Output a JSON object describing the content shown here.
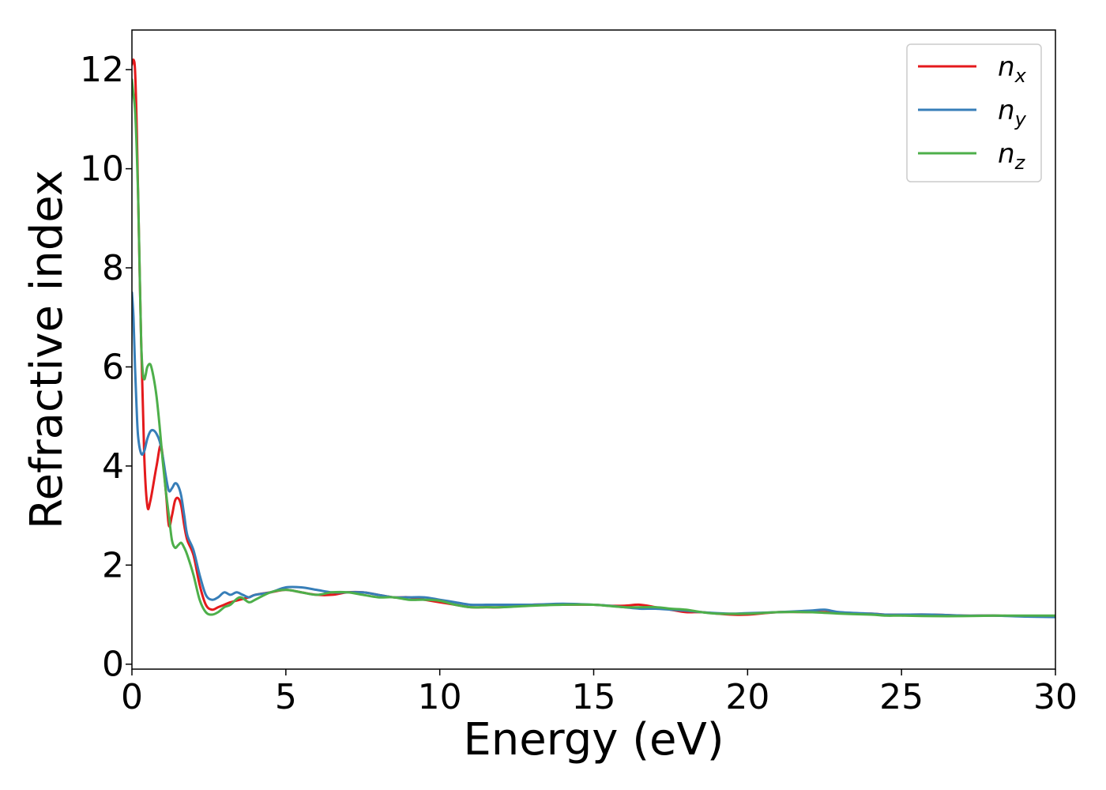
{
  "chart_data": {
    "type": "line",
    "xlabel": "Energy (eV)",
    "ylabel": "Refractive index",
    "xlim": [
      0,
      30
    ],
    "ylim": [
      -0.1,
      12.8
    ],
    "xticks": [
      0,
      5,
      10,
      15,
      20,
      25,
      30
    ],
    "yticks": [
      0,
      2,
      4,
      6,
      8,
      10,
      12
    ],
    "grid": false,
    "legend_position": "top-right",
    "series": [
      {
        "name": "n",
        "subscript": "x",
        "color": "#e41a1c",
        "x": [
          0,
          0.05,
          0.1,
          0.15,
          0.2,
          0.3,
          0.4,
          0.5,
          0.6,
          0.8,
          0.95,
          1.1,
          1.2,
          1.3,
          1.4,
          1.5,
          1.6,
          1.7,
          1.8,
          2.0,
          2.2,
          2.4,
          2.6,
          2.8,
          3.0,
          3.2,
          3.5,
          3.8,
          4.0,
          4.5,
          5.0,
          5.5,
          6.0,
          6.5,
          7.0,
          7.5,
          8.0,
          8.5,
          9.0,
          9.5,
          10.0,
          10.5,
          11.0,
          11.5,
          12.0,
          13.0,
          14.0,
          15.0,
          15.5,
          16.0,
          16.5,
          17.0,
          17.5,
          18.0,
          18.5,
          19.0,
          19.5,
          20.0,
          21.0,
          22.0,
          22.5,
          23.0,
          24.0,
          24.5,
          25.0,
          26.0,
          27.0,
          28.0,
          29.0,
          30.0
        ],
        "y": [
          12.1,
          12.2,
          12.0,
          11.0,
          9.5,
          6.5,
          4.2,
          3.2,
          3.3,
          4.0,
          4.4,
          3.5,
          2.8,
          3.0,
          3.3,
          3.35,
          3.2,
          2.8,
          2.5,
          2.2,
          1.6,
          1.2,
          1.1,
          1.15,
          1.2,
          1.25,
          1.3,
          1.35,
          1.4,
          1.45,
          1.5,
          1.45,
          1.4,
          1.4,
          1.45,
          1.45,
          1.4,
          1.35,
          1.35,
          1.3,
          1.25,
          1.2,
          1.15,
          1.15,
          1.15,
          1.2,
          1.2,
          1.2,
          1.18,
          1.18,
          1.2,
          1.15,
          1.1,
          1.05,
          1.05,
          1.02,
          1.0,
          1.0,
          1.05,
          1.05,
          1.05,
          1.03,
          1.02,
          1.0,
          1.0,
          1.0,
          0.98,
          0.98,
          0.97,
          0.96
        ]
      },
      {
        "name": "n",
        "subscript": "y",
        "color": "#377eb8",
        "x": [
          0,
          0.05,
          0.1,
          0.15,
          0.2,
          0.3,
          0.4,
          0.5,
          0.6,
          0.7,
          0.8,
          0.9,
          1.0,
          1.1,
          1.2,
          1.3,
          1.4,
          1.5,
          1.6,
          1.7,
          1.8,
          2.0,
          2.2,
          2.4,
          2.6,
          2.8,
          3.0,
          3.2,
          3.4,
          3.6,
          3.8,
          4.0,
          4.5,
          5.0,
          5.5,
          6.0,
          6.5,
          7.0,
          7.5,
          8.0,
          8.5,
          9.0,
          9.5,
          10.0,
          10.5,
          11.0,
          11.5,
          12.0,
          13.0,
          14.0,
          15.0,
          15.5,
          16.0,
          16.5,
          17.0,
          17.5,
          18.0,
          18.5,
          19.0,
          19.5,
          20.0,
          21.0,
          22.0,
          22.5,
          23.0,
          24.0,
          24.5,
          25.0,
          26.0,
          27.0,
          28.0,
          29.0,
          30.0
        ],
        "y": [
          7.5,
          7.0,
          6.0,
          5.2,
          4.6,
          4.25,
          4.3,
          4.55,
          4.7,
          4.72,
          4.65,
          4.5,
          4.2,
          3.8,
          3.5,
          3.55,
          3.65,
          3.6,
          3.4,
          3.0,
          2.6,
          2.3,
          1.8,
          1.4,
          1.3,
          1.35,
          1.45,
          1.4,
          1.45,
          1.4,
          1.35,
          1.4,
          1.45,
          1.55,
          1.55,
          1.5,
          1.45,
          1.45,
          1.45,
          1.4,
          1.35,
          1.35,
          1.35,
          1.3,
          1.25,
          1.2,
          1.2,
          1.2,
          1.2,
          1.22,
          1.2,
          1.18,
          1.15,
          1.12,
          1.12,
          1.1,
          1.08,
          1.05,
          1.03,
          1.02,
          1.03,
          1.05,
          1.08,
          1.1,
          1.05,
          1.02,
          1.0,
          1.0,
          1.0,
          0.98,
          0.98,
          0.96,
          0.95
        ]
      },
      {
        "name": "n",
        "subscript": "z",
        "color": "#4daf4a",
        "x": [
          0,
          0.05,
          0.1,
          0.15,
          0.2,
          0.25,
          0.3,
          0.35,
          0.4,
          0.45,
          0.5,
          0.6,
          0.7,
          0.8,
          0.9,
          1.0,
          1.1,
          1.2,
          1.3,
          1.4,
          1.5,
          1.6,
          1.7,
          1.8,
          2.0,
          2.2,
          2.4,
          2.6,
          2.8,
          3.0,
          3.2,
          3.5,
          3.8,
          4.0,
          4.5,
          5.0,
          5.5,
          6.0,
          6.5,
          7.0,
          7.5,
          8.0,
          8.5,
          9.0,
          9.5,
          10.0,
          10.5,
          11.0,
          11.5,
          12.0,
          13.0,
          14.0,
          15.0,
          16.0,
          17.0,
          17.5,
          18.0,
          18.5,
          19.0,
          20.0,
          21.0,
          22.0,
          23.0,
          24.0,
          24.5,
          25.0,
          26.0,
          27.0,
          28.0,
          29.0,
          30.0
        ],
        "y": [
          11.8,
          11.5,
          11.2,
          10.5,
          9.5,
          8.0,
          6.5,
          5.9,
          5.75,
          5.85,
          6.0,
          6.05,
          5.8,
          5.4,
          4.8,
          4.1,
          3.5,
          3.0,
          2.5,
          2.35,
          2.4,
          2.45,
          2.35,
          2.2,
          1.8,
          1.3,
          1.05,
          1.0,
          1.05,
          1.15,
          1.2,
          1.35,
          1.25,
          1.3,
          1.45,
          1.5,
          1.45,
          1.4,
          1.45,
          1.45,
          1.4,
          1.35,
          1.35,
          1.3,
          1.3,
          1.28,
          1.2,
          1.15,
          1.15,
          1.15,
          1.18,
          1.2,
          1.2,
          1.15,
          1.15,
          1.12,
          1.1,
          1.05,
          1.02,
          1.02,
          1.05,
          1.05,
          1.02,
          1.0,
          0.98,
          0.98,
          0.97,
          0.97,
          0.98,
          0.98,
          0.98
        ]
      }
    ]
  }
}
